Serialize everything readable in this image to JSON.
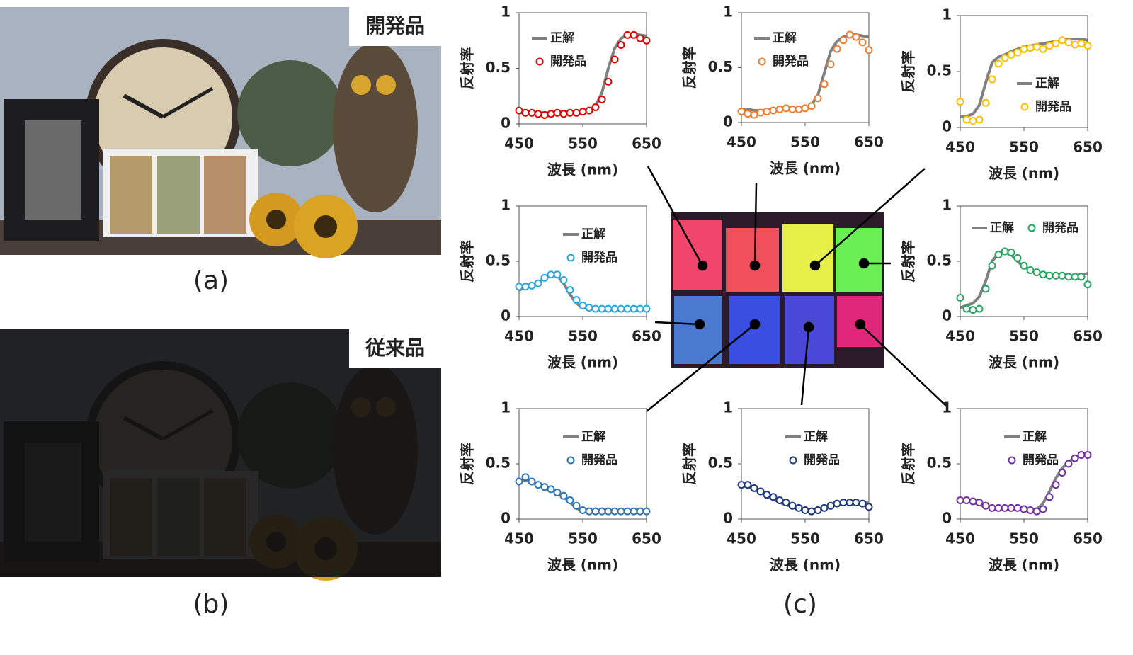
{
  "images": [
    {
      "tag": "開発品",
      "caption": "(a)"
    },
    {
      "tag": "従来品",
      "caption": "(b)"
    }
  ],
  "figure_c": {
    "caption": "(c)"
  },
  "chart_data": [
    {
      "type": "line",
      "xlabel": "波長 (nm)",
      "ylabel": "反射率",
      "xlim": [
        450,
        650
      ],
      "xticks": [
        450,
        550,
        650
      ],
      "ylim": [
        0,
        1
      ],
      "yticks": [
        0,
        0.5,
        1
      ],
      "legend": "upper left",
      "x": [
        450,
        460,
        470,
        480,
        490,
        500,
        510,
        520,
        530,
        540,
        550,
        560,
        570,
        580,
        590,
        600,
        610,
        620,
        630,
        640,
        650
      ],
      "series": [
        {
          "name": "正解",
          "color": "#808080",
          "style": "line",
          "values": [
            0.1,
            0.1,
            0.1,
            0.1,
            0.1,
            0.1,
            0.11,
            0.11,
            0.1,
            0.1,
            0.1,
            0.12,
            0.16,
            0.28,
            0.5,
            0.68,
            0.77,
            0.8,
            0.81,
            0.8,
            0.79
          ]
        },
        {
          "name": "開発品",
          "color": "#e00000",
          "style": "markers",
          "values": [
            0.12,
            0.1,
            0.1,
            0.09,
            0.08,
            0.09,
            0.1,
            0.09,
            0.1,
            0.1,
            0.11,
            0.12,
            0.15,
            0.22,
            0.38,
            0.58,
            0.71,
            0.8,
            0.8,
            0.77,
            0.75
          ]
        }
      ]
    },
    {
      "type": "line",
      "xlabel": "波長 (nm)",
      "ylabel": "反射率",
      "xlim": [
        450,
        650
      ],
      "xticks": [
        450,
        550,
        650
      ],
      "ylim": [
        0,
        1
      ],
      "yticks": [
        0,
        0.5,
        1
      ],
      "legend": "upper left",
      "x": [
        450,
        460,
        470,
        480,
        490,
        500,
        510,
        520,
        530,
        540,
        550,
        560,
        570,
        580,
        590,
        600,
        610,
        620,
        630,
        640,
        650
      ],
      "series": [
        {
          "name": "正解",
          "color": "#808080",
          "style": "line",
          "values": [
            0.12,
            0.12,
            0.11,
            0.11,
            0.11,
            0.12,
            0.12,
            0.12,
            0.12,
            0.12,
            0.13,
            0.16,
            0.25,
            0.45,
            0.65,
            0.74,
            0.78,
            0.8,
            0.8,
            0.79,
            0.78
          ]
        },
        {
          "name": "開発品",
          "color": "#ed7d31",
          "style": "markers",
          "values": [
            0.1,
            0.08,
            0.07,
            0.09,
            0.1,
            0.11,
            0.12,
            0.13,
            0.12,
            0.12,
            0.13,
            0.15,
            0.22,
            0.35,
            0.53,
            0.67,
            0.75,
            0.8,
            0.78,
            0.73,
            0.66
          ]
        }
      ]
    },
    {
      "type": "line",
      "xlabel": "波長 (nm)",
      "ylabel": "反射率",
      "xlim": [
        450,
        650
      ],
      "xticks": [
        450,
        550,
        650
      ],
      "ylim": [
        0,
        1
      ],
      "yticks": [
        0,
        0.5,
        1
      ],
      "legend": "center right",
      "x": [
        450,
        460,
        470,
        480,
        490,
        500,
        510,
        520,
        530,
        540,
        550,
        560,
        570,
        580,
        590,
        600,
        610,
        620,
        630,
        640,
        650
      ],
      "series": [
        {
          "name": "正解",
          "color": "#808080",
          "style": "line",
          "values": [
            0.1,
            0.1,
            0.12,
            0.2,
            0.4,
            0.58,
            0.63,
            0.65,
            0.68,
            0.7,
            0.72,
            0.73,
            0.74,
            0.75,
            0.76,
            0.77,
            0.78,
            0.79,
            0.79,
            0.79,
            0.78
          ]
        },
        {
          "name": "開発品",
          "color": "#ffc000",
          "style": "markers",
          "values": [
            0.23,
            0.07,
            0.06,
            0.07,
            0.22,
            0.43,
            0.57,
            0.62,
            0.65,
            0.67,
            0.7,
            0.71,
            0.72,
            0.7,
            0.73,
            0.75,
            0.78,
            0.76,
            0.74,
            0.75,
            0.73
          ]
        }
      ]
    },
    {
      "type": "line",
      "xlabel": "波長 (nm)",
      "ylabel": "反射率",
      "xlim": [
        450,
        650
      ],
      "xticks": [
        450,
        550,
        650
      ],
      "ylim": [
        0,
        1
      ],
      "yticks": [
        0,
        0.5,
        1
      ],
      "legend": "upper center",
      "x": [
        450,
        460,
        470,
        480,
        490,
        500,
        510,
        520,
        530,
        540,
        550,
        560,
        570,
        580,
        590,
        600,
        610,
        620,
        630,
        640,
        650
      ],
      "series": [
        {
          "name": "正解",
          "color": "#808080",
          "style": "line",
          "values": [
            0.24,
            0.26,
            0.28,
            0.31,
            0.35,
            0.38,
            0.37,
            0.3,
            0.2,
            0.12,
            0.08,
            0.07,
            0.07,
            0.07,
            0.07,
            0.07,
            0.07,
            0.07,
            0.07,
            0.07,
            0.08
          ]
        },
        {
          "name": "開発品",
          "color": "#2aa5dc",
          "style": "markers",
          "values": [
            0.27,
            0.27,
            0.28,
            0.3,
            0.35,
            0.38,
            0.38,
            0.33,
            0.24,
            0.15,
            0.1,
            0.08,
            0.07,
            0.07,
            0.07,
            0.07,
            0.07,
            0.07,
            0.07,
            0.07,
            0.07
          ]
        }
      ]
    },
    {
      "type": "line",
      "xlabel": "波長 (nm)",
      "ylabel": "反射率",
      "xlim": [
        450,
        650
      ],
      "xticks": [
        450,
        550,
        650
      ],
      "ylim": [
        0,
        1
      ],
      "yticks": [
        0,
        0.5,
        1
      ],
      "legend": "upper",
      "x": [
        450,
        460,
        470,
        480,
        490,
        500,
        510,
        520,
        530,
        540,
        550,
        560,
        570,
        580,
        590,
        600,
        610,
        620,
        630,
        640,
        650
      ],
      "series": [
        {
          "name": "正解",
          "color": "#808080",
          "style": "line",
          "values": [
            0.08,
            0.1,
            0.12,
            0.18,
            0.32,
            0.5,
            0.57,
            0.58,
            0.56,
            0.5,
            0.45,
            0.42,
            0.4,
            0.39,
            0.39,
            0.38,
            0.38,
            0.37,
            0.37,
            0.38,
            0.39
          ]
        },
        {
          "name": "開発品",
          "color": "#25a55f",
          "style": "markers",
          "values": [
            0.17,
            0.07,
            0.06,
            0.07,
            0.25,
            0.46,
            0.56,
            0.59,
            0.58,
            0.53,
            0.46,
            0.42,
            0.4,
            0.38,
            0.37,
            0.37,
            0.37,
            0.36,
            0.36,
            0.36,
            0.29
          ]
        }
      ]
    },
    {
      "type": "line",
      "xlabel": "波長 (nm)",
      "ylabel": "反射率",
      "xlim": [
        450,
        650
      ],
      "xticks": [
        450,
        550,
        650
      ],
      "ylim": [
        0,
        1
      ],
      "yticks": [
        0,
        0.5,
        1
      ],
      "legend": "upper center",
      "x": [
        450,
        460,
        470,
        480,
        490,
        500,
        510,
        520,
        530,
        540,
        550,
        560,
        570,
        580,
        590,
        600,
        610,
        620,
        630,
        640,
        650
      ],
      "series": [
        {
          "name": "正解",
          "color": "#808080",
          "style": "line",
          "values": [
            0.35,
            0.35,
            0.34,
            0.32,
            0.3,
            0.27,
            0.24,
            0.2,
            0.15,
            0.1,
            0.07,
            0.06,
            0.06,
            0.06,
            0.06,
            0.06,
            0.07,
            0.07,
            0.07,
            0.07,
            0.07
          ]
        },
        {
          "name": "開発品",
          "color": "#2e75b6",
          "style": "markers",
          "values": [
            0.34,
            0.38,
            0.34,
            0.31,
            0.29,
            0.27,
            0.24,
            0.21,
            0.17,
            0.12,
            0.08,
            0.07,
            0.07,
            0.07,
            0.07,
            0.07,
            0.07,
            0.07,
            0.07,
            0.07,
            0.07
          ]
        }
      ]
    },
    {
      "type": "line",
      "xlabel": "波長 (nm)",
      "ylabel": "反射率",
      "xlim": [
        450,
        650
      ],
      "xticks": [
        450,
        550,
        650
      ],
      "ylim": [
        0,
        1
      ],
      "yticks": [
        0,
        0.5,
        1
      ],
      "legend": "upper center",
      "x": [
        450,
        460,
        470,
        480,
        490,
        500,
        510,
        520,
        530,
        540,
        550,
        560,
        570,
        580,
        590,
        600,
        610,
        620,
        630,
        640,
        650
      ],
      "series": [
        {
          "name": "正解",
          "color": "#808080",
          "style": "line",
          "values": [
            0.3,
            0.29,
            0.27,
            0.24,
            0.21,
            0.18,
            0.15,
            0.13,
            0.11,
            0.09,
            0.08,
            0.08,
            0.09,
            0.1,
            0.12,
            0.13,
            0.14,
            0.15,
            0.15,
            0.15,
            0.15
          ]
        },
        {
          "name": "開発品",
          "color": "#1f3a7a",
          "style": "markers",
          "values": [
            0.31,
            0.31,
            0.28,
            0.25,
            0.22,
            0.2,
            0.17,
            0.15,
            0.12,
            0.1,
            0.08,
            0.07,
            0.08,
            0.1,
            0.12,
            0.14,
            0.15,
            0.15,
            0.15,
            0.14,
            0.11
          ]
        }
      ]
    },
    {
      "type": "line",
      "xlabel": "波長 (nm)",
      "ylabel": "反射率",
      "xlim": [
        450,
        650
      ],
      "xticks": [
        450,
        550,
        650
      ],
      "ylim": [
        0,
        1
      ],
      "yticks": [
        0,
        0.5,
        1
      ],
      "legend": "upper center",
      "x": [
        450,
        460,
        470,
        480,
        490,
        500,
        510,
        520,
        530,
        540,
        550,
        560,
        570,
        580,
        590,
        600,
        610,
        620,
        630,
        640,
        650
      ],
      "series": [
        {
          "name": "正解",
          "color": "#808080",
          "style": "line",
          "values": [
            0.17,
            0.16,
            0.15,
            0.13,
            0.11,
            0.1,
            0.1,
            0.1,
            0.09,
            0.09,
            0.08,
            0.08,
            0.09,
            0.14,
            0.25,
            0.37,
            0.46,
            0.52,
            0.55,
            0.57,
            0.58
          ]
        },
        {
          "name": "開発品",
          "color": "#7030a0",
          "style": "markers",
          "values": [
            0.17,
            0.17,
            0.16,
            0.15,
            0.12,
            0.1,
            0.1,
            0.1,
            0.1,
            0.1,
            0.09,
            0.08,
            0.07,
            0.09,
            0.2,
            0.31,
            0.42,
            0.5,
            0.55,
            0.58,
            0.58
          ]
        }
      ]
    }
  ]
}
